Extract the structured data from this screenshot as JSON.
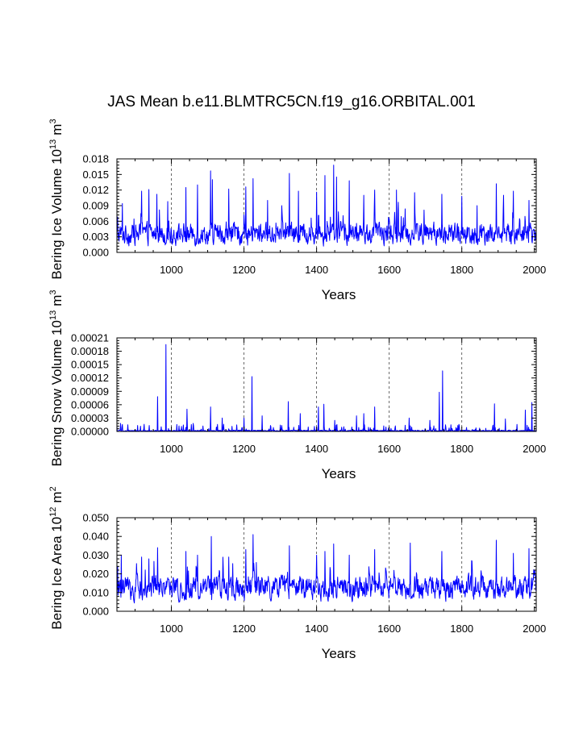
{
  "title": "JAS Mean b.e11.BLMTRC5CN.f19_g16.ORBITAL.001",
  "colors": {
    "series": "#0000ff",
    "axis": "#000000",
    "refline": "#444444"
  },
  "chart_data": [
    {
      "type": "line",
      "ylabel_main": "Bering Ice Volume 10",
      "ylabel_exp": "13",
      "ylabel_unit": "m",
      "ylabel_unit_exp": "3",
      "xlabel": "Years",
      "xlim": [
        850,
        2005
      ],
      "ylim": [
        0,
        0.018
      ],
      "yticks": [
        "0.000",
        "0.003",
        "0.006",
        "0.009",
        "0.012",
        "0.015",
        "0.018"
      ],
      "xticks": [
        "1000",
        "1200",
        "1400",
        "1600",
        "1800",
        "2000"
      ],
      "ref_lines": [
        1000,
        1200,
        1400,
        1600,
        1800
      ],
      "base": 0.0035,
      "spread": 0.0025,
      "floor": 0.0004,
      "spikes": [
        [
          852,
          0.0068
        ],
        [
          865,
          0.0094
        ],
        [
          918,
          0.0118
        ],
        [
          938,
          0.0121
        ],
        [
          960,
          0.0112
        ],
        [
          990,
          0.0098
        ],
        [
          1040,
          0.0125
        ],
        [
          1072,
          0.013
        ],
        [
          1108,
          0.0157
        ],
        [
          1113,
          0.014
        ],
        [
          1158,
          0.0122
        ],
        [
          1205,
          0.0126
        ],
        [
          1225,
          0.0142
        ],
        [
          1265,
          0.01
        ],
        [
          1325,
          0.0152
        ],
        [
          1350,
          0.0118
        ],
        [
          1400,
          0.0116
        ],
        [
          1423,
          0.0148
        ],
        [
          1447,
          0.0168
        ],
        [
          1455,
          0.0145
        ],
        [
          1490,
          0.0138
        ],
        [
          1530,
          0.011
        ],
        [
          1560,
          0.012
        ],
        [
          1620,
          0.012
        ],
        [
          1670,
          0.0115
        ],
        [
          1745,
          0.0112
        ],
        [
          1800,
          0.0108
        ],
        [
          1842,
          0.009
        ],
        [
          1895,
          0.0132
        ],
        [
          1915,
          0.011
        ],
        [
          1942,
          0.0118
        ],
        [
          1985,
          0.01
        ]
      ]
    },
    {
      "type": "line",
      "ylabel_main": "Bering Snow Volume 10",
      "ylabel_exp": "13",
      "ylabel_unit": "m",
      "ylabel_unit_exp": "3",
      "xlabel": "Years",
      "xlim": [
        850,
        2005
      ],
      "ylim": [
        0,
        0.00021
      ],
      "yticks": [
        "0.00000",
        "0.00003",
        "0.00006",
        "0.00009",
        "0.00012",
        "0.00015",
        "0.00018",
        "0.00021"
      ],
      "xticks": [
        "1000",
        "1200",
        "1400",
        "1600",
        "1800",
        "2000"
      ],
      "ref_lines": [
        1000,
        1200,
        1400,
        1600,
        1800
      ],
      "base": 2e-06,
      "spread": 4e-06,
      "floor": 0.0,
      "spikes": [
        [
          860,
          1.8e-05
        ],
        [
          880,
          1.5e-05
        ],
        [
          925,
          1.6e-05
        ],
        [
          962,
          7.8e-05
        ],
        [
          985,
          0.000195
        ],
        [
          1043,
          5e-05
        ],
        [
          1060,
          1.8e-05
        ],
        [
          1108,
          5.5e-05
        ],
        [
          1140,
          3e-05
        ],
        [
          1200,
          3e-05
        ],
        [
          1222,
          0.000123
        ],
        [
          1250,
          3.5e-05
        ],
        [
          1322,
          6.7e-05
        ],
        [
          1355,
          4e-05
        ],
        [
          1405,
          5.5e-05
        ],
        [
          1420,
          6.1e-05
        ],
        [
          1450,
          2.5e-05
        ],
        [
          1510,
          3.5e-05
        ],
        [
          1530,
          4e-05
        ],
        [
          1560,
          5.5e-05
        ],
        [
          1655,
          3e-05
        ],
        [
          1712,
          2.5e-05
        ],
        [
          1738,
          8.8e-05
        ],
        [
          1747,
          0.000136
        ],
        [
          1770,
          1.5e-05
        ],
        [
          1890,
          6.2e-05
        ],
        [
          1920,
          2.8e-05
        ],
        [
          1975,
          4.8e-05
        ],
        [
          1993,
          6.5e-05
        ]
      ]
    },
    {
      "type": "line",
      "ylabel_main": "Bering Ice Area 10",
      "ylabel_exp": "12",
      "ylabel_unit": "m",
      "ylabel_unit_exp": "2",
      "xlabel": "Years",
      "xlim": [
        850,
        2005
      ],
      "ylim": [
        0,
        0.05
      ],
      "yticks": [
        "0.000",
        "0.010",
        "0.020",
        "0.030",
        "0.040",
        "0.050"
      ],
      "xticks": [
        "1000",
        "1200",
        "1400",
        "1600",
        "1800",
        "2000"
      ],
      "ref_lines": [
        1000,
        1200,
        1400,
        1600,
        1800
      ],
      "base": 0.0125,
      "spread": 0.0075,
      "floor": 0.002,
      "spikes": [
        [
          852,
          0.024
        ],
        [
          862,
          0.03
        ],
        [
          918,
          0.029
        ],
        [
          938,
          0.028
        ],
        [
          962,
          0.034
        ],
        [
          1040,
          0.032
        ],
        [
          1072,
          0.03
        ],
        [
          1110,
          0.04
        ],
        [
          1158,
          0.029
        ],
        [
          1205,
          0.033
        ],
        [
          1225,
          0.041
        ],
        [
          1325,
          0.035
        ],
        [
          1400,
          0.03
        ],
        [
          1423,
          0.032
        ],
        [
          1447,
          0.036
        ],
        [
          1490,
          0.03
        ],
        [
          1560,
          0.033
        ],
        [
          1658,
          0.0365
        ],
        [
          1745,
          0.032
        ],
        [
          1895,
          0.038
        ],
        [
          1942,
          0.031
        ],
        [
          1985,
          0.0335
        ]
      ]
    }
  ]
}
